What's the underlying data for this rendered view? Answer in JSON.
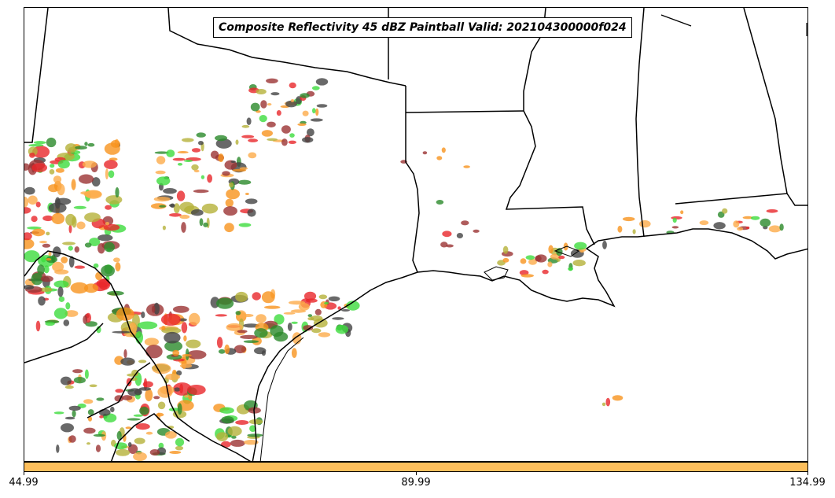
{
  "title": "Composite Reflectivity 45 dBZ Paintball Valid: 202104300000f024",
  "colorbar": {
    "fill_color": "#fdbf5c",
    "tick_labels": [
      "44.99",
      "89.99",
      "134.99"
    ]
  },
  "map": {
    "border_color": "#000000",
    "paintball_colors": [
      "#e8272a",
      "#f7931e",
      "#2a8a2a",
      "#3ddc3d",
      "#444444",
      "#b5b23a",
      "#9b3333",
      "#fdab4a"
    ]
  }
}
